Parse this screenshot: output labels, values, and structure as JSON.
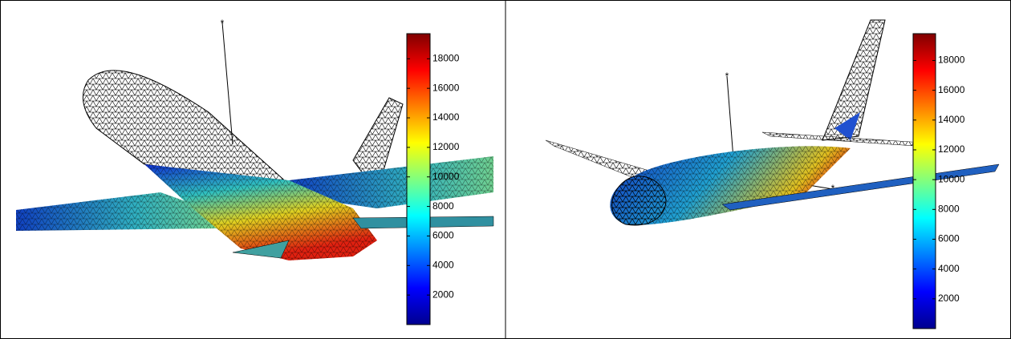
{
  "panels": [
    {
      "colorbar": {
        "lim": [
          0,
          19700
        ],
        "ticks": [
          2000,
          4000,
          6000,
          8000,
          10000,
          12000,
          14000,
          16000,
          18000
        ]
      }
    },
    {
      "colorbar": {
        "lim": [
          0,
          19800
        ],
        "ticks": [
          2000,
          4000,
          6000,
          8000,
          10000,
          12000,
          14000,
          16000,
          18000
        ]
      }
    }
  ]
}
